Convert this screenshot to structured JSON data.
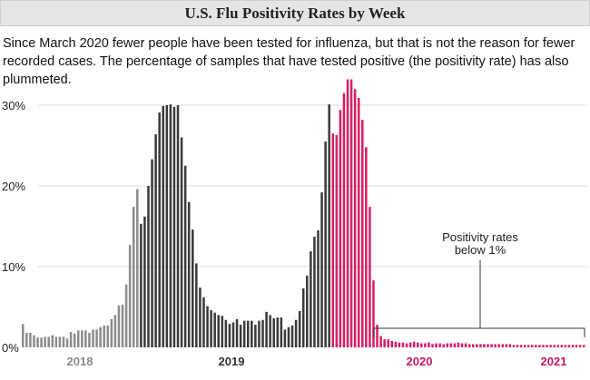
{
  "header": {
    "title": "U.S. Flu Positivity Rates by Week"
  },
  "subtitle": "Since March 2020 fewer people have been tested for influenza, but that is not the reason for fewer recorded cases. The percentage of samples that have tested positive (the positivity rate) has also plummeted.",
  "chart_data": {
    "type": "bar",
    "title": "U.S. Flu Positivity Rates by Week",
    "ylim": [
      0,
      30
    ],
    "yticks": [
      "0%",
      "10%",
      "20%",
      "30%"
    ],
    "ytick_values": [
      0,
      10,
      20,
      30
    ],
    "grid": "horizontal",
    "unit": "%",
    "x_labels": [
      {
        "label": "2018",
        "color": "#8a8a8a"
      },
      {
        "label": "2019",
        "color": "#333333"
      },
      {
        "label": "2020",
        "color": "#c8185f"
      },
      {
        "label": "2021",
        "color": "#c8185f"
      }
    ],
    "segments": [
      {
        "color": "#8c8c8c",
        "values": [
          2.9,
          1.8,
          1.8,
          1.5,
          1.2,
          1.2,
          1.3,
          1.3,
          1.5,
          1.3,
          1.3,
          1.3,
          1.1,
          1.9,
          1.7,
          2.1,
          2.1,
          2.1,
          1.8,
          2.2,
          2.2,
          2.5,
          2.7,
          2.7,
          3.5,
          4.0,
          5.2,
          5.3,
          7.8,
          12.7,
          17.4,
          19.6
        ]
      },
      {
        "color": "#3a3a3a",
        "values": [
          15.3,
          16.2,
          20.0,
          23.3,
          26.4,
          29.1,
          29.9,
          30.0,
          30.1,
          29.8,
          30.0,
          26.0,
          22.5,
          18.0,
          14.6,
          10.4,
          7.4,
          6.2,
          5.1,
          4.6,
          4.3,
          4.0,
          3.9,
          3.4,
          2.9,
          3.1,
          3.5,
          2.8,
          3.3,
          3.3,
          3.3,
          2.8,
          3.3,
          3.4,
          4.4,
          4.0,
          3.6,
          3.7,
          3.7,
          2.2,
          2.5,
          2.7,
          3.4,
          4.5,
          7.3,
          8.9,
          11.9,
          13.7,
          14.5,
          19.2,
          25.5,
          30.1
        ]
      },
      {
        "color": "#d81e66",
        "values": [
          26.5,
          26.3,
          29.4,
          31.5,
          33.2,
          33.2,
          32.0,
          30.9,
          28.2,
          24.8,
          17.4,
          8.3,
          2.8,
          1.4,
          1.0,
          1.0,
          0.8,
          0.7,
          0.6,
          0.6,
          0.5,
          0.6,
          0.7,
          0.6,
          0.5,
          0.5,
          0.6,
          0.4,
          0.5,
          0.5,
          0.4,
          0.5,
          0.5,
          0.5,
          0.6,
          0.5,
          0.5,
          0.4,
          0.4,
          0.4,
          0.4,
          0.4,
          0.4,
          0.4,
          0.4,
          0.4,
          0.4,
          0.4,
          0.4,
          0.3,
          0.3,
          0.3,
          0.3,
          0.3,
          0.3,
          0.3,
          0.3,
          0.3,
          0.3,
          0.3,
          0.3,
          0.3,
          0.3,
          0.3,
          0.3,
          0.3,
          0.3,
          0.3,
          0.3
        ]
      }
    ],
    "annotation": {
      "line1": "Positivity rates",
      "line2": "below 1%"
    }
  }
}
